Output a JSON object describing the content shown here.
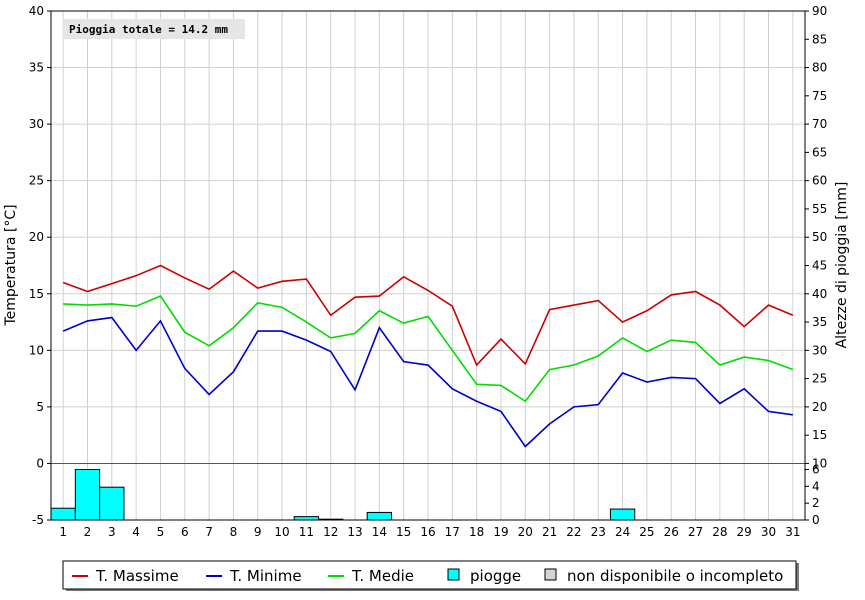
{
  "chart_data": {
    "type": "line",
    "note": "Pioggia totale = 14.2 mm",
    "ylabel_left": "Temperatura [°C]",
    "ylabel_right": "Altezze di pioggia [mm]",
    "ylim_left": [
      -5,
      40
    ],
    "ylim_right": [
      0,
      90
    ],
    "left_ticks": [
      -5,
      0,
      5,
      10,
      15,
      20,
      25,
      30,
      35,
      40
    ],
    "right_ticks": [
      0,
      5,
      10,
      15,
      20,
      25,
      30,
      35,
      40,
      45,
      50,
      55,
      60,
      65,
      70,
      75,
      80,
      85,
      90
    ],
    "right_ticks_lower": [
      0,
      2,
      4,
      6
    ],
    "x": [
      1,
      2,
      3,
      4,
      5,
      6,
      7,
      8,
      9,
      10,
      11,
      12,
      13,
      14,
      15,
      16,
      17,
      18,
      19,
      20,
      21,
      22,
      23,
      24,
      25,
      26,
      27,
      28,
      29,
      30,
      31
    ],
    "grid": true,
    "series": [
      {
        "name": "T. Massime",
        "color": "#cc0000",
        "values": [
          16.0,
          15.2,
          15.9,
          16.6,
          17.5,
          16.4,
          15.4,
          17.0,
          15.5,
          16.1,
          16.3,
          13.1,
          14.7,
          14.8,
          16.5,
          15.3,
          13.9,
          8.7,
          11.0,
          8.8,
          13.6,
          14.0,
          14.4,
          12.5,
          13.5,
          14.9,
          15.2,
          14.0,
          12.1,
          14.0,
          13.1
        ]
      },
      {
        "name": "T. Minime",
        "color": "#0000cc",
        "values": [
          11.7,
          12.6,
          12.9,
          10.0,
          12.6,
          8.4,
          6.1,
          8.1,
          11.7,
          11.7,
          10.9,
          9.9,
          6.5,
          12.0,
          9.0,
          8.7,
          6.6,
          5.5,
          4.6,
          1.5,
          3.5,
          5.0,
          5.2,
          8.0,
          7.2,
          7.6,
          7.5,
          5.3,
          6.6,
          4.6,
          4.3
        ]
      },
      {
        "name": "T. Medie",
        "color": "#00dd00",
        "values": [
          14.1,
          14.0,
          14.1,
          13.9,
          14.8,
          11.6,
          10.4,
          12.0,
          14.2,
          13.8,
          12.5,
          11.1,
          11.5,
          13.5,
          12.4,
          13.0,
          10.0,
          7.0,
          6.9,
          5.5,
          8.3,
          8.7,
          9.5,
          11.1,
          9.9,
          10.9,
          10.7,
          8.7,
          9.4,
          9.1,
          8.3
        ]
      }
    ],
    "rain": {
      "name": "piogge",
      "color": "#00ffff",
      "values": [
        1.4,
        6.0,
        3.9,
        0,
        0,
        0,
        0,
        0,
        0,
        0,
        0.4,
        0.1,
        0,
        0.9,
        0,
        0,
        0,
        0,
        0,
        0,
        0,
        0,
        0,
        1.3,
        0,
        0,
        0,
        0,
        0,
        0,
        0
      ]
    },
    "legend": [
      {
        "label": "T. Massime",
        "kind": "line",
        "color": "#cc0000"
      },
      {
        "label": "T. Minime",
        "kind": "line",
        "color": "#0000cc"
      },
      {
        "label": "T. Medie",
        "kind": "line",
        "color": "#00dd00"
      },
      {
        "label": "piogge",
        "kind": "box",
        "color": "#00ffff"
      },
      {
        "label": "non disponibile o incompleto",
        "kind": "box",
        "color": "#d4d4d4"
      }
    ]
  }
}
